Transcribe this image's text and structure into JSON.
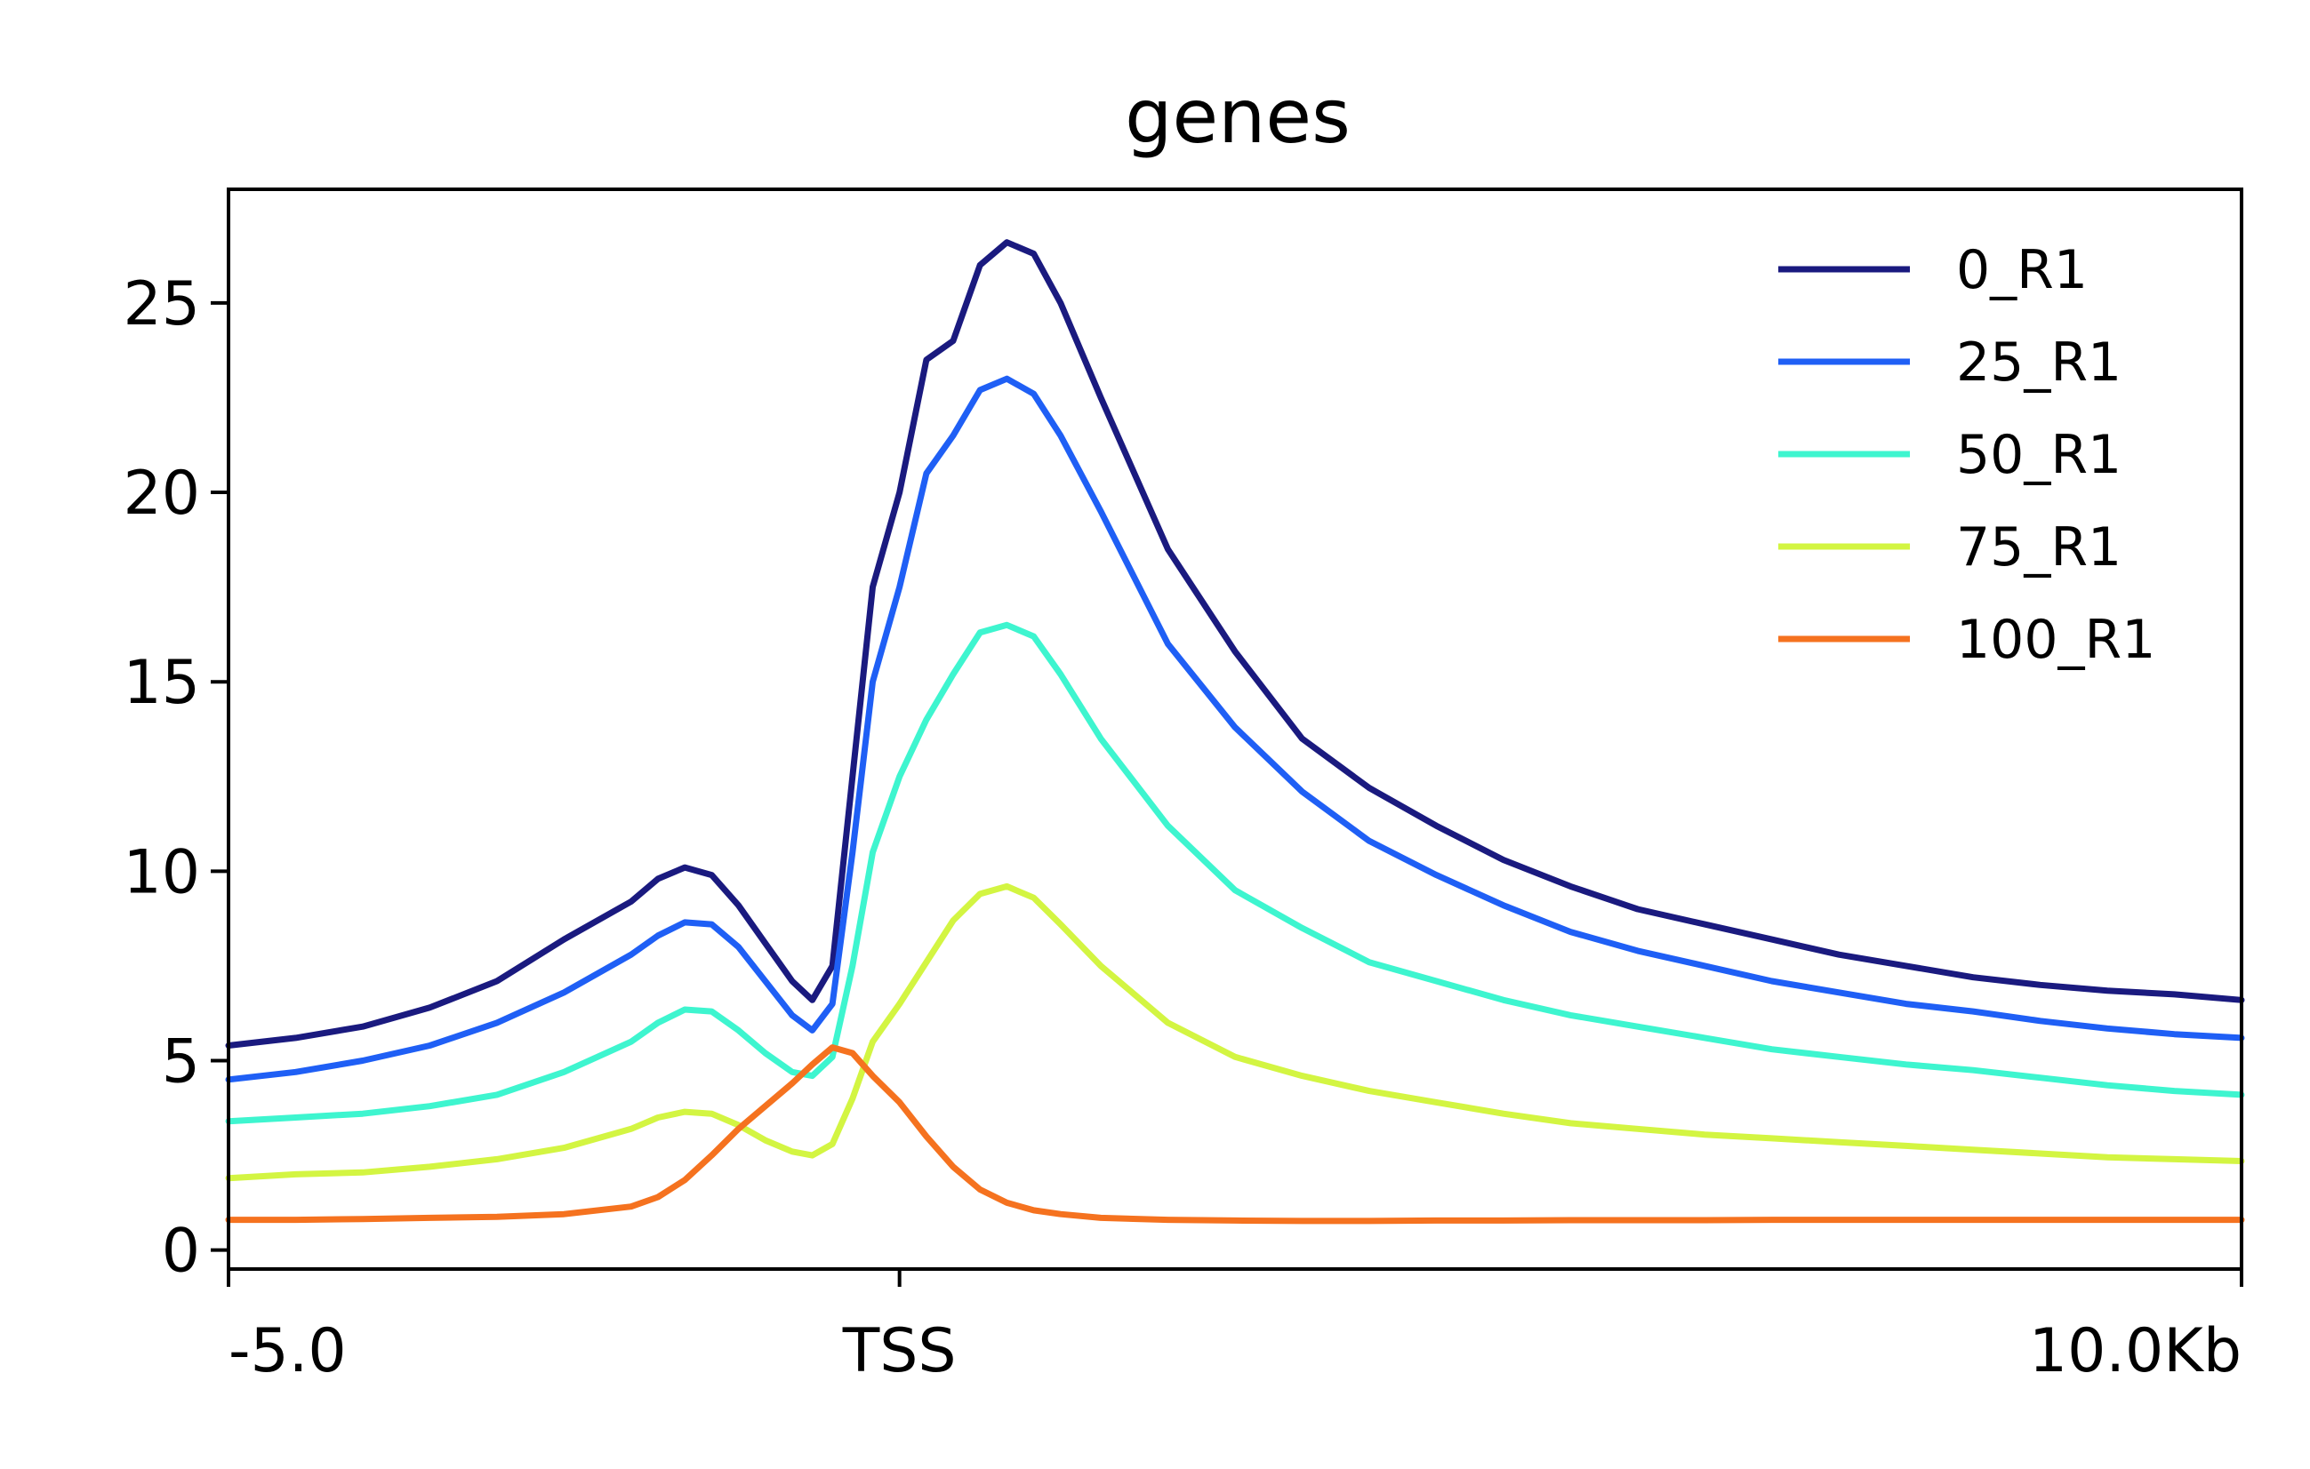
{
  "chart_data": {
    "type": "line",
    "title": "genes",
    "xlabel": "",
    "ylabel": "",
    "xlim": [
      -5.0,
      10.0
    ],
    "ylim": [
      -0.5,
      28
    ],
    "x_ticks": [
      {
        "value": -5.0,
        "label": "-5.0"
      },
      {
        "value": 0.0,
        "label": "TSS"
      },
      {
        "value": 10.0,
        "label": "10.0Kb"
      }
    ],
    "y_ticks": [
      {
        "value": 0,
        "label": "0"
      },
      {
        "value": 5,
        "label": "5"
      },
      {
        "value": 10,
        "label": "10"
      },
      {
        "value": 15,
        "label": "15"
      },
      {
        "value": 20,
        "label": "20"
      },
      {
        "value": 25,
        "label": "25"
      }
    ],
    "legend_position": "top-right",
    "series": [
      {
        "name": "0_R1",
        "color": "#1a1a7f",
        "points": [
          [
            -5,
            5.4
          ],
          [
            -4.5,
            5.6
          ],
          [
            -4,
            5.9
          ],
          [
            -3.5,
            6.4
          ],
          [
            -3,
            7.1
          ],
          [
            -2.5,
            8.2
          ],
          [
            -2,
            9.2
          ],
          [
            -1.8,
            9.8
          ],
          [
            -1.6,
            10.1
          ],
          [
            -1.4,
            9.9
          ],
          [
            -1.2,
            9.1
          ],
          [
            -1,
            8.1
          ],
          [
            -0.8,
            7.1
          ],
          [
            -0.65,
            6.6
          ],
          [
            -0.5,
            7.5
          ],
          [
            -0.35,
            12.5
          ],
          [
            -0.2,
            17.5
          ],
          [
            0,
            20
          ],
          [
            0.2,
            23.5
          ],
          [
            0.4,
            24
          ],
          [
            0.6,
            26
          ],
          [
            0.8,
            26.6
          ],
          [
            1.0,
            26.3
          ],
          [
            1.2,
            25
          ],
          [
            1.5,
            22.5
          ],
          [
            2.0,
            18.5
          ],
          [
            2.5,
            15.8
          ],
          [
            3,
            13.5
          ],
          [
            3.5,
            12.2
          ],
          [
            4,
            11.2
          ],
          [
            4.5,
            10.3
          ],
          [
            5,
            9.6
          ],
          [
            5.5,
            9.0
          ],
          [
            6,
            8.6
          ],
          [
            6.5,
            8.2
          ],
          [
            7,
            7.8
          ],
          [
            7.5,
            7.5
          ],
          [
            8,
            7.2
          ],
          [
            8.5,
            7.0
          ],
          [
            9,
            6.85
          ],
          [
            9.5,
            6.75
          ],
          [
            10,
            6.6
          ]
        ]
      },
      {
        "name": "25_R1",
        "color": "#1f5ff5",
        "points": [
          [
            -5,
            4.5
          ],
          [
            -4.5,
            4.7
          ],
          [
            -4,
            5.0
          ],
          [
            -3.5,
            5.4
          ],
          [
            -3,
            6.0
          ],
          [
            -2.5,
            6.8
          ],
          [
            -2,
            7.8
          ],
          [
            -1.8,
            8.3
          ],
          [
            -1.6,
            8.65
          ],
          [
            -1.4,
            8.6
          ],
          [
            -1.2,
            8.0
          ],
          [
            -1,
            7.1
          ],
          [
            -0.8,
            6.2
          ],
          [
            -0.65,
            5.8
          ],
          [
            -0.5,
            6.5
          ],
          [
            -0.35,
            10.5
          ],
          [
            -0.2,
            15
          ],
          [
            0,
            17.5
          ],
          [
            0.2,
            20.5
          ],
          [
            0.4,
            21.5
          ],
          [
            0.6,
            22.7
          ],
          [
            0.8,
            23.0
          ],
          [
            1.0,
            22.6
          ],
          [
            1.2,
            21.5
          ],
          [
            1.5,
            19.5
          ],
          [
            2.0,
            16
          ],
          [
            2.5,
            13.8
          ],
          [
            3,
            12.1
          ],
          [
            3.5,
            10.8
          ],
          [
            4,
            9.9
          ],
          [
            4.5,
            9.1
          ],
          [
            5,
            8.4
          ],
          [
            5.5,
            7.9
          ],
          [
            6,
            7.5
          ],
          [
            6.5,
            7.1
          ],
          [
            7,
            6.8
          ],
          [
            7.5,
            6.5
          ],
          [
            8,
            6.3
          ],
          [
            8.5,
            6.05
          ],
          [
            9,
            5.85
          ],
          [
            9.5,
            5.7
          ],
          [
            10,
            5.6
          ]
        ]
      },
      {
        "name": "50_R1",
        "color": "#3ef5cf",
        "points": [
          [
            -5,
            3.4
          ],
          [
            -4.5,
            3.5
          ],
          [
            -4,
            3.6
          ],
          [
            -3.5,
            3.8
          ],
          [
            -3,
            4.1
          ],
          [
            -2.5,
            4.7
          ],
          [
            -2,
            5.5
          ],
          [
            -1.8,
            6.0
          ],
          [
            -1.6,
            6.35
          ],
          [
            -1.4,
            6.3
          ],
          [
            -1.2,
            5.8
          ],
          [
            -1,
            5.2
          ],
          [
            -0.8,
            4.7
          ],
          [
            -0.65,
            4.6
          ],
          [
            -0.5,
            5.1
          ],
          [
            -0.35,
            7.5
          ],
          [
            -0.2,
            10.5
          ],
          [
            0,
            12.5
          ],
          [
            0.2,
            14
          ],
          [
            0.4,
            15.2
          ],
          [
            0.6,
            16.3
          ],
          [
            0.8,
            16.5
          ],
          [
            1.0,
            16.2
          ],
          [
            1.2,
            15.2
          ],
          [
            1.5,
            13.5
          ],
          [
            2.0,
            11.2
          ],
          [
            2.5,
            9.5
          ],
          [
            3,
            8.5
          ],
          [
            3.5,
            7.6
          ],
          [
            4,
            7.1
          ],
          [
            4.5,
            6.6
          ],
          [
            5,
            6.2
          ],
          [
            5.5,
            5.9
          ],
          [
            6,
            5.6
          ],
          [
            6.5,
            5.3
          ],
          [
            7,
            5.1
          ],
          [
            7.5,
            4.9
          ],
          [
            8,
            4.75
          ],
          [
            8.5,
            4.55
          ],
          [
            9,
            4.35
          ],
          [
            9.5,
            4.2
          ],
          [
            10,
            4.1
          ]
        ]
      },
      {
        "name": "75_R1",
        "color": "#d3f542",
        "points": [
          [
            -5,
            1.9
          ],
          [
            -4.5,
            2.0
          ],
          [
            -4,
            2.05
          ],
          [
            -3.5,
            2.2
          ],
          [
            -3,
            2.4
          ],
          [
            -2.5,
            2.7
          ],
          [
            -2,
            3.2
          ],
          [
            -1.8,
            3.5
          ],
          [
            -1.6,
            3.65
          ],
          [
            -1.4,
            3.6
          ],
          [
            -1.2,
            3.3
          ],
          [
            -1,
            2.9
          ],
          [
            -0.8,
            2.6
          ],
          [
            -0.65,
            2.5
          ],
          [
            -0.5,
            2.8
          ],
          [
            -0.35,
            4.0
          ],
          [
            -0.2,
            5.5
          ],
          [
            0,
            6.5
          ],
          [
            0.2,
            7.6
          ],
          [
            0.4,
            8.7
          ],
          [
            0.6,
            9.4
          ],
          [
            0.8,
            9.6
          ],
          [
            1.0,
            9.3
          ],
          [
            1.2,
            8.6
          ],
          [
            1.5,
            7.5
          ],
          [
            2.0,
            6.0
          ],
          [
            2.5,
            5.1
          ],
          [
            3,
            4.6
          ],
          [
            3.5,
            4.2
          ],
          [
            4,
            3.9
          ],
          [
            4.5,
            3.6
          ],
          [
            5,
            3.35
          ],
          [
            5.5,
            3.2
          ],
          [
            6,
            3.05
          ],
          [
            6.5,
            2.95
          ],
          [
            7,
            2.85
          ],
          [
            7.5,
            2.75
          ],
          [
            8,
            2.65
          ],
          [
            8.5,
            2.55
          ],
          [
            9,
            2.45
          ],
          [
            9.5,
            2.4
          ],
          [
            10,
            2.35
          ]
        ]
      },
      {
        "name": "100_R1",
        "color": "#f5721f",
        "points": [
          [
            -5,
            0.8
          ],
          [
            -4.5,
            0.8
          ],
          [
            -4,
            0.82
          ],
          [
            -3.5,
            0.85
          ],
          [
            -3,
            0.88
          ],
          [
            -2.5,
            0.95
          ],
          [
            -2,
            1.15
          ],
          [
            -1.8,
            1.4
          ],
          [
            -1.6,
            1.85
          ],
          [
            -1.4,
            2.5
          ],
          [
            -1.2,
            3.2
          ],
          [
            -1,
            3.8
          ],
          [
            -0.8,
            4.4
          ],
          [
            -0.65,
            4.9
          ],
          [
            -0.5,
            5.35
          ],
          [
            -0.35,
            5.2
          ],
          [
            -0.2,
            4.6
          ],
          [
            0,
            3.9
          ],
          [
            0.2,
            3.0
          ],
          [
            0.4,
            2.2
          ],
          [
            0.6,
            1.6
          ],
          [
            0.8,
            1.25
          ],
          [
            1.0,
            1.05
          ],
          [
            1.2,
            0.95
          ],
          [
            1.5,
            0.85
          ],
          [
            2.0,
            0.8
          ],
          [
            2.5,
            0.78
          ],
          [
            3,
            0.77
          ],
          [
            3.5,
            0.77
          ],
          [
            4,
            0.78
          ],
          [
            4.5,
            0.78
          ],
          [
            5,
            0.79
          ],
          [
            5.5,
            0.79
          ],
          [
            6,
            0.79
          ],
          [
            6.5,
            0.8
          ],
          [
            7,
            0.8
          ],
          [
            7.5,
            0.8
          ],
          [
            8,
            0.8
          ],
          [
            8.5,
            0.8
          ],
          [
            9,
            0.8
          ],
          [
            9.5,
            0.8
          ],
          [
            10,
            0.8
          ]
        ]
      }
    ]
  }
}
